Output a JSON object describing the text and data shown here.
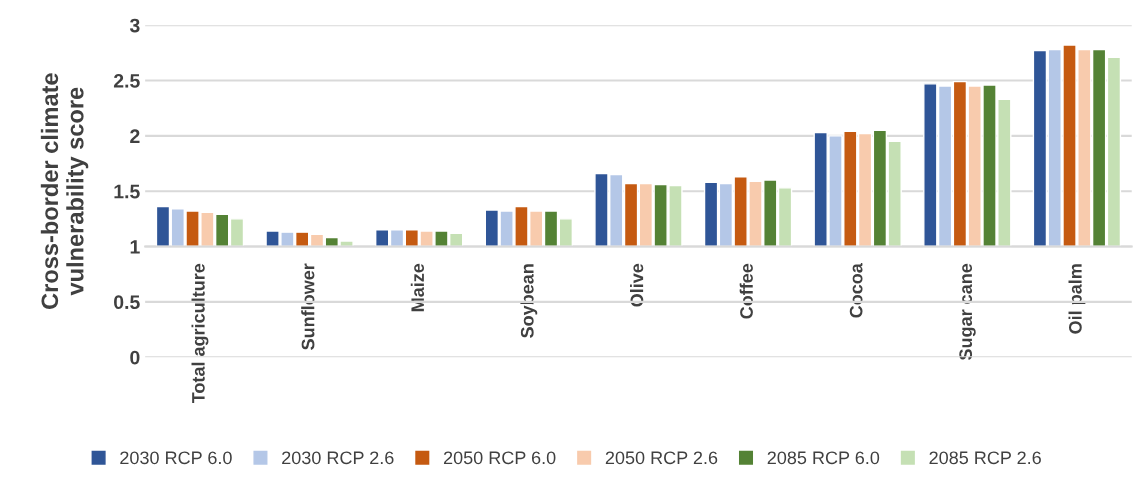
{
  "chart_data": {
    "type": "bar",
    "ylabel": "Cross-border climate\nvulnerability score",
    "categories": [
      "Total agriculture",
      "Sunflower",
      "Maize",
      "Soybean",
      "Olive",
      "Coffee",
      "Cocoa",
      "Sugar cane",
      "Oil palm"
    ],
    "series": [
      {
        "name": "2030 RCP 6.0",
        "color": "#2f5597",
        "base": [
          1,
          1,
          1,
          1,
          1,
          1,
          1,
          1,
          1
        ],
        "values": [
          0.36,
          0.14,
          0.15,
          0.33,
          0.66,
          0.58,
          1.03,
          1.47,
          1.77
        ]
      },
      {
        "name": "2030 RCP 2.6",
        "color": "#b4c7e7",
        "base": [
          1,
          1,
          1,
          1,
          1,
          1,
          1,
          1,
          1
        ],
        "values": [
          0.34,
          0.13,
          0.15,
          0.32,
          0.65,
          0.57,
          1.0,
          1.45,
          1.78
        ]
      },
      {
        "name": "2050 RCP 6.0",
        "color": "#c55a11",
        "base": [
          1,
          1,
          1,
          1,
          1,
          1,
          1,
          1,
          1
        ],
        "values": [
          0.32,
          0.13,
          0.15,
          0.36,
          0.57,
          0.63,
          1.04,
          1.49,
          1.82
        ]
      },
      {
        "name": "2050 RCP 2.6",
        "color": "#f8cbad",
        "base": [
          1,
          1,
          1,
          1,
          1,
          1,
          1,
          1,
          1
        ],
        "values": [
          0.31,
          0.11,
          0.14,
          0.32,
          0.57,
          0.59,
          1.02,
          1.45,
          1.78
        ]
      },
      {
        "name": "2085 RCP 6.0",
        "color": "#548235",
        "base": [
          1,
          1,
          1,
          1,
          1,
          1,
          1,
          1,
          1
        ],
        "values": [
          0.29,
          0.08,
          0.14,
          0.32,
          0.56,
          0.6,
          1.05,
          1.46,
          1.78
        ]
      },
      {
        "name": "2085 RCP 2.6",
        "color": "#c5e0b4",
        "base": [
          1,
          1,
          1,
          1,
          1,
          1,
          1,
          1,
          1
        ],
        "values": [
          0.25,
          0.05,
          0.12,
          0.25,
          0.55,
          0.53,
          0.95,
          1.33,
          1.71
        ]
      }
    ],
    "ylim": [
      0,
      3
    ],
    "yticks": [
      0,
      0.5,
      1,
      1.5,
      2,
      2.5,
      3
    ],
    "grid": "y",
    "legend": "bottom"
  }
}
